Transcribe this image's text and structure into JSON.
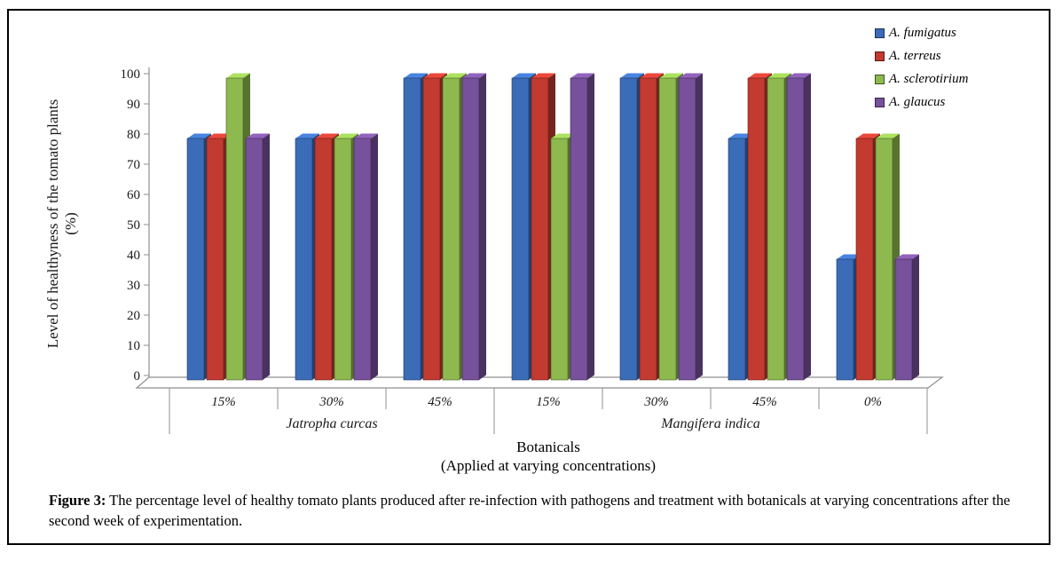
{
  "figure": {
    "caption_label": "Figure 3:",
    "caption_text": "The percentage level of healthy tomato plants produced after re-infection with pathogens and treatment with botanicals at varying concentrations after the second week of experimentation."
  },
  "chart_data": {
    "type": "bar",
    "style": "3d-clustered",
    "title": "",
    "xlabel": "Botanicals",
    "xlabel_sub": "(Applied at varying concentrations)",
    "ylabel": "Level of healthyness of the tomato plants",
    "ylabel_unit": "(%)",
    "ylim": [
      0,
      100
    ],
    "yticks": [
      0,
      10,
      20,
      30,
      40,
      50,
      60,
      70,
      80,
      90,
      100
    ],
    "grid": false,
    "legend_position": "top-right",
    "categories": [
      "15%",
      "30%",
      "45%",
      "15%",
      "30%",
      "45%",
      "0%"
    ],
    "group_labels": [
      {
        "label": "Jatropha curcas",
        "from_cell": 0,
        "to_cell": 3
      },
      {
        "label": "Mangifera indica",
        "from_cell": 3,
        "to_cell": 7
      }
    ],
    "series": [
      {
        "name": "A. fumigatus",
        "color": "#3B6CB8",
        "values": [
          80,
          80,
          100,
          100,
          100,
          80,
          40
        ]
      },
      {
        "name": "A. terreus",
        "color": "#C23A30",
        "values": [
          80,
          80,
          100,
          100,
          100,
          100,
          80
        ]
      },
      {
        "name": "A. sclerotirium",
        "color": "#8DB94E",
        "values": [
          100,
          80,
          100,
          80,
          100,
          100,
          80
        ]
      },
      {
        "name": "A. glaucus",
        "color": "#77519B",
        "values": [
          80,
          80,
          100,
          100,
          100,
          100,
          40
        ]
      }
    ],
    "line_color": "#8f8f8f"
  }
}
